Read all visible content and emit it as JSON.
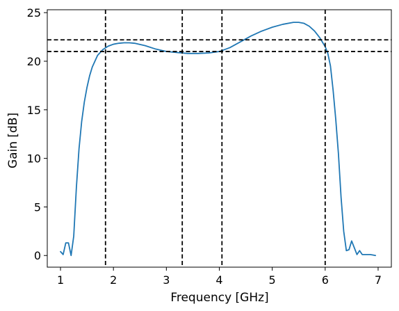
{
  "chart_data": {
    "type": "line",
    "title": "",
    "xlabel": "Frequency [GHz]",
    "ylabel": "Gain [dB]",
    "xlim": [
      0.75,
      7.25
    ],
    "ylim": [
      -1.2,
      25.3
    ],
    "x_ticks": [
      1,
      2,
      3,
      4,
      5,
      6,
      7
    ],
    "y_ticks": [
      0,
      5,
      10,
      15,
      20,
      25
    ],
    "grid": false,
    "legend": "none",
    "series": [
      {
        "color": "#1f77b4",
        "x": [
          1.0,
          1.05,
          1.1,
          1.15,
          1.2,
          1.25,
          1.3,
          1.35,
          1.4,
          1.45,
          1.5,
          1.55,
          1.6,
          1.7,
          1.8,
          1.9,
          2.0,
          2.1,
          2.2,
          2.3,
          2.4,
          2.6,
          2.8,
          3.0,
          3.2,
          3.4,
          3.6,
          3.8,
          4.0,
          4.2,
          4.4,
          4.6,
          4.8,
          5.0,
          5.2,
          5.4,
          5.5,
          5.6,
          5.7,
          5.8,
          5.9,
          6.0,
          6.05,
          6.1,
          6.15,
          6.2,
          6.25,
          6.3,
          6.35,
          6.4,
          6.45,
          6.5,
          6.55,
          6.6,
          6.65,
          6.7,
          6.75,
          6.8,
          6.85,
          6.9,
          6.95
        ],
        "y": [
          0.4,
          0.1,
          1.3,
          1.3,
          0.0,
          2.0,
          7.0,
          11.0,
          13.8,
          15.8,
          17.3,
          18.5,
          19.4,
          20.6,
          21.2,
          21.55,
          21.75,
          21.85,
          21.9,
          21.9,
          21.85,
          21.6,
          21.25,
          21.0,
          20.9,
          20.8,
          20.8,
          20.85,
          21.0,
          21.4,
          22.0,
          22.6,
          23.1,
          23.5,
          23.8,
          24.0,
          24.0,
          23.9,
          23.6,
          23.1,
          22.4,
          21.5,
          20.8,
          19.5,
          17.0,
          14.0,
          10.5,
          6.0,
          2.5,
          0.5,
          0.6,
          1.5,
          0.8,
          0.1,
          0.5,
          0.1,
          0.1,
          0.1,
          0.1,
          0.05,
          0.0
        ]
      }
    ],
    "reference_lines": {
      "vertical_x": [
        1.85,
        3.3,
        4.05,
        6.0
      ],
      "horizontal_y": [
        21.0,
        22.2
      ],
      "style": "dashed",
      "color": "#000000"
    }
  }
}
